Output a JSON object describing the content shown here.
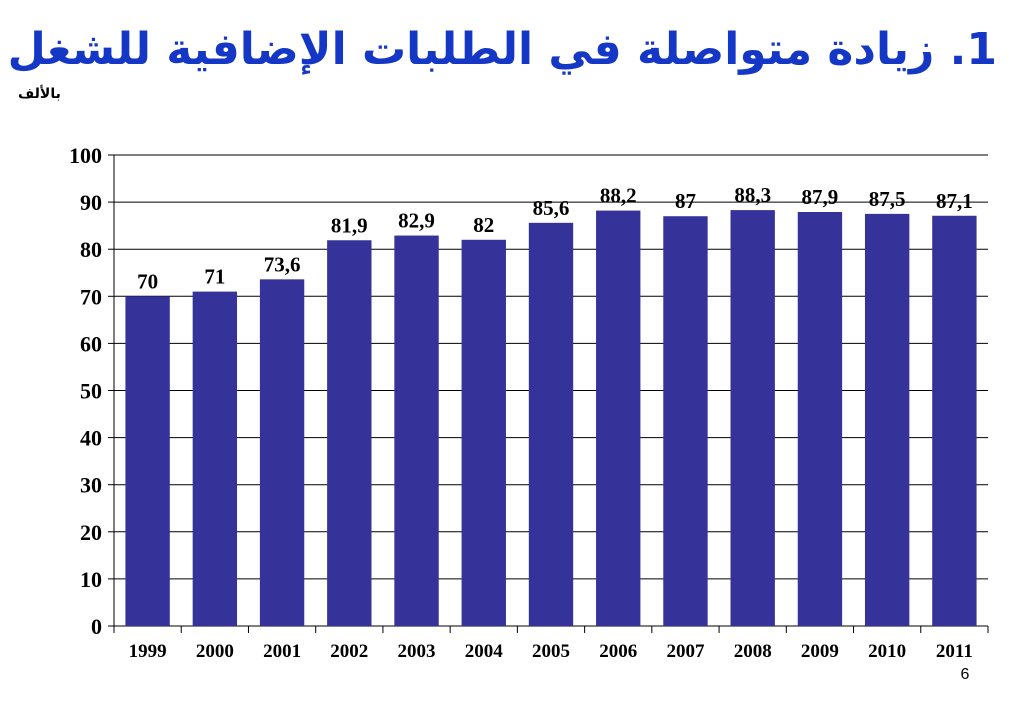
{
  "slide": {
    "title": "1. زيادة متواصلة في الطلبات الإضافية للشغل",
    "unit": "بالألف",
    "page_number": "6"
  },
  "chart_data": {
    "type": "bar",
    "categories": [
      "1999",
      "2000",
      "2001",
      "2002",
      "2003",
      "2004",
      "2005",
      "2006",
      "2007",
      "2008",
      "2009",
      "2010",
      "2011"
    ],
    "values": [
      70,
      71,
      73.6,
      81.9,
      82.9,
      82,
      85.6,
      88.2,
      87,
      88.3,
      87.9,
      87.5,
      87.1
    ],
    "data_labels": [
      "70",
      "71",
      "73,6",
      "81,9",
      "82,9",
      "82",
      "85,6",
      "88,2",
      "87",
      "88,3",
      "87,9",
      "87,5",
      "87,1"
    ],
    "ylim": [
      0,
      100
    ],
    "yticks": [
      0,
      10,
      20,
      30,
      40,
      50,
      60,
      70,
      80,
      90,
      100
    ],
    "grid": true,
    "bar_color": "#353399",
    "grid_color": "#000000"
  }
}
